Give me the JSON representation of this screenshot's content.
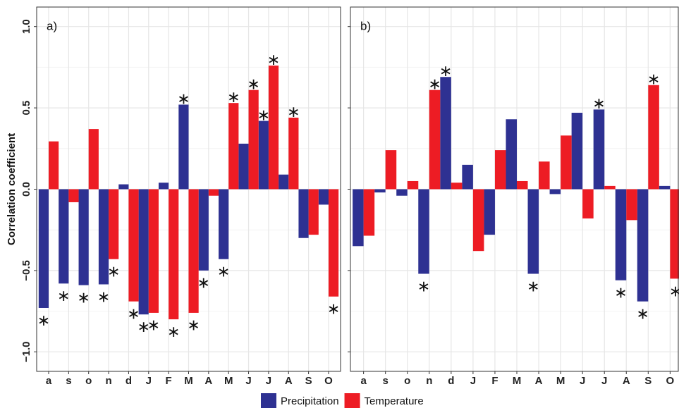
{
  "chart_data": [
    {
      "type": "bar",
      "label": "a)",
      "y_label": "Correlation coefficient",
      "categories": [
        "a",
        "s",
        "o",
        "n",
        "d",
        "J",
        "F",
        "M",
        "A",
        "M",
        "J",
        "J",
        "A",
        "S",
        "O"
      ],
      "significance_symbol": "∗",
      "series": [
        {
          "name": "Precipitation",
          "color": "#2e3192",
          "values": [
            -0.73,
            -0.58,
            -0.59,
            -0.585,
            0.03,
            -0.77,
            0.04,
            0.52,
            -0.5,
            -0.43,
            0.28,
            0.42,
            0.09,
            -0.3,
            -0.095
          ],
          "significant": [
            true,
            true,
            true,
            true,
            false,
            true,
            false,
            true,
            true,
            true,
            false,
            true,
            false,
            false,
            false
          ]
        },
        {
          "name": "Temperature",
          "color": "#ed1c24",
          "values": [
            0.294,
            -0.08,
            0.37,
            -0.43,
            -0.69,
            -0.76,
            -0.8,
            -0.76,
            -0.04,
            0.53,
            0.61,
            0.76,
            0.44,
            -0.28,
            -0.66
          ],
          "significant": [
            false,
            false,
            false,
            true,
            true,
            true,
            true,
            true,
            false,
            true,
            true,
            true,
            true,
            false,
            true
          ]
        }
      ],
      "ylim": [
        -1.12,
        1.12
      ],
      "yticks": [
        {
          "value": -1.0,
          "label": "−1.0"
        },
        {
          "value": -0.5,
          "label": "−0.5"
        },
        {
          "value": 0,
          "label": "0.0"
        },
        {
          "value": 0.5,
          "label": "0.5"
        },
        {
          "value": 1.0,
          "label": "1.0"
        }
      ],
      "grid": true,
      "legend": "bottom"
    },
    {
      "type": "bar",
      "label": "b)",
      "categories": [
        "a",
        "s",
        "o",
        "n",
        "d",
        "J",
        "F",
        "M",
        "A",
        "M",
        "J",
        "J",
        "A",
        "S",
        "O"
      ],
      "series": [
        {
          "name": "Precipitation",
          "color": "#2e3192",
          "values": [
            -0.35,
            -0.02,
            -0.04,
            -0.52,
            0.69,
            0.15,
            -0.28,
            0.43,
            -0.52,
            -0.03,
            0.47,
            0.49,
            -0.56,
            -0.69,
            0.02
          ],
          "significant": [
            false,
            false,
            false,
            true,
            true,
            false,
            false,
            false,
            true,
            false,
            false,
            true,
            true,
            true,
            false
          ]
        },
        {
          "name": "Temperature",
          "color": "#ed1c24",
          "values": [
            -0.286,
            0.24,
            0.05,
            0.61,
            0.04,
            -0.38,
            0.24,
            0.05,
            0.17,
            0.33,
            -0.18,
            0.02,
            -0.19,
            0.64,
            -0.55
          ],
          "significant": [
            false,
            false,
            false,
            true,
            false,
            false,
            false,
            false,
            false,
            false,
            false,
            false,
            false,
            true,
            true
          ]
        }
      ],
      "ylim": [
        -1.12,
        1.12
      ],
      "yticks": [
        -1.0,
        -0.5,
        0,
        0.5,
        1.0
      ],
      "grid": true
    }
  ]
}
